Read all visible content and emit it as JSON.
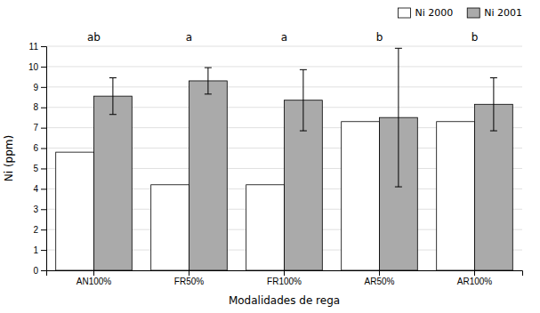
{
  "chart_data": {
    "type": "bar",
    "categories": [
      "AN100%",
      "FR50%",
      "FR100%",
      "AR50%",
      "AR100%"
    ],
    "series": [
      {
        "name": "Ni 2000",
        "color": "#ffffff",
        "values": [
          5.8,
          4.2,
          4.2,
          7.3,
          7.3
        ]
      },
      {
        "name": "Ni 2001",
        "color": "#aaaaaa",
        "values": [
          8.55,
          9.3,
          8.35,
          7.5,
          8.15
        ],
        "errors": [
          0.9,
          0.65,
          1.5,
          3.4,
          1.3
        ]
      }
    ],
    "annotations": [
      "ab",
      "a",
      "a",
      "b",
      "b"
    ],
    "xlabel": "Modalidades de rega",
    "ylabel": "Ni (ppm)",
    "ylim": [
      0,
      11
    ],
    "yticks": [
      0,
      1,
      2,
      3,
      4,
      5,
      6,
      7,
      8,
      9,
      10,
      11
    ],
    "grid": true,
    "legend": "upper right"
  }
}
